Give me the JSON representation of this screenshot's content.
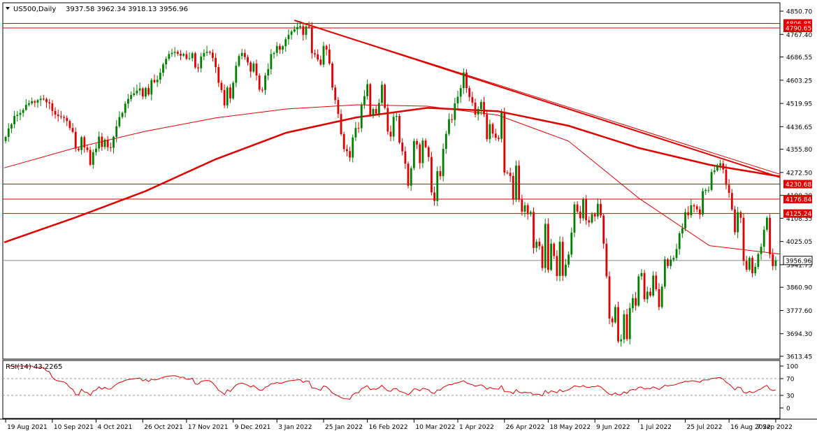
{
  "chart_data": {
    "type": "candlestick",
    "symbol": "US500,Daily",
    "ohlc_header": "3937.58 3962.34 3918.13 3956.96",
    "last_price": "3956.96",
    "price_axis": {
      "ylim": [
        3613.45,
        4850.7
      ],
      "ticks": [
        "4850.70",
        "4767.40",
        "4686.55",
        "4603.25",
        "4519.95",
        "4436.65",
        "4355.80",
        "4272.50",
        "4190.20",
        "4108.35",
        "4025.05",
        "3941.75",
        "3860.90",
        "3777.60",
        "3694.30",
        "3613.45"
      ]
    },
    "date_axis": {
      "labels": [
        "19 Aug 2021",
        "10 Sep 2021",
        "4 Oct 2021",
        "26 Oct 2021",
        "17 Nov 2021",
        "9 Dec 2021",
        "3 Jan 2022",
        "25 Jan 2022",
        "16 Feb 2022",
        "10 Mar 2022",
        "1 Apr 2022",
        "26 Apr 2022",
        "18 May 2022",
        "9 Jun 2022",
        "1 Jul 2022",
        "25 Jul 2022",
        "16 Aug 2022",
        "7 Sep 2022"
      ]
    },
    "horizontal_levels": [
      {
        "label": "4806.85",
        "value": 4806.85
      },
      {
        "label": "4790.65",
        "value": 4790.65
      },
      {
        "label": "4230.68",
        "value": 4230.68
      },
      {
        "label": "4176.84",
        "value": 4176.84
      },
      {
        "label": "4125.24",
        "value": 4125.24
      }
    ],
    "current_price_line": 3956.96,
    "rsi": {
      "label": "RSI(14) 43.2265",
      "ticks": [
        "100",
        "70",
        "30",
        "0"
      ],
      "levels": [
        70,
        30
      ],
      "ylim": [
        0,
        100
      ],
      "last": 43.2265
    },
    "closes": [
      4400,
      4430,
      4445,
      4475,
      4479,
      4486,
      4497,
      4515,
      4520,
      4528,
      4523,
      4532,
      4537,
      4536,
      4524,
      4520,
      4493,
      4480,
      4474,
      4471,
      4468,
      4457,
      4432,
      4418,
      4358,
      4353,
      4399,
      4362,
      4353,
      4300,
      4345,
      4358,
      4401,
      4364,
      4390,
      4363,
      4361,
      4400,
      4438,
      4471,
      4486,
      4519,
      4536,
      4550,
      4556,
      4566,
      4574,
      4545,
      4575,
      4552,
      4604,
      4596,
      4605,
      4630,
      4660,
      4680,
      4697,
      4701,
      4705,
      4698,
      4691,
      4697,
      4680,
      4682,
      4700,
      4649,
      4646,
      4688,
      4701,
      4705,
      4702,
      4683,
      4650,
      4594,
      4568,
      4513,
      4577,
      4538,
      4594,
      4655,
      4690,
      4701,
      4686,
      4667,
      4634,
      4663,
      4620,
      4569,
      4568,
      4620,
      4643,
      4697,
      4701,
      4726,
      4713,
      4725,
      4750,
      4766,
      4778,
      4786,
      4793,
      4797,
      4766,
      4796,
      4793,
      4700,
      4696,
      4677,
      4659,
      4726,
      4713,
      4663,
      4577,
      4532,
      4482,
      4410,
      4356,
      4349,
      4326,
      4398,
      4432,
      4431,
      4516,
      4546,
      4589,
      4477,
      4500,
      4484,
      4522,
      4587,
      4504,
      4419,
      4401,
      4472,
      4475,
      4380,
      4348,
      4304,
      4225,
      4288,
      4385,
      4373,
      4306,
      4387,
      4363,
      4328,
      4201,
      4170,
      4277,
      4259,
      4357,
      4411,
      4463,
      4461,
      4520,
      4544,
      4575,
      4631,
      4575,
      4543,
      4523,
      4480,
      4500,
      4525,
      4481,
      4392,
      4446,
      4412,
      4397,
      4393,
      4488,
      4272,
      4271,
      4260,
      4175,
      4297,
      4175,
      4132,
      4155,
      4123,
      4131,
      4002,
      4024,
      4008,
      3930,
      4088,
      3923,
      4017,
      3973,
      3901,
      4024,
      3902,
      3942,
      3978,
      4057,
      4158,
      4132,
      4108,
      4176,
      4101,
      4093,
      4123,
      4115,
      4160,
      4118,
      4017,
      3900,
      3749,
      3735,
      3790,
      3667,
      3674,
      3764,
      3675,
      3786,
      3822,
      3795,
      3900,
      3912,
      3818,
      3845,
      3831,
      3903,
      3854,
      3790,
      3863,
      3961,
      3937,
      3960,
      3966,
      3998,
      4054,
      4072,
      4130,
      4119,
      4155,
      4151,
      4140,
      4122,
      4206,
      4210,
      4210,
      4274,
      4280,
      4298,
      4305,
      4283,
      4228,
      4199,
      4140,
      4058,
      4130,
      4110,
      3955,
      3924,
      3966,
      3911,
      3934,
      3980,
      4006,
      4067,
      4110,
      3979,
      3937,
      3956.96
    ],
    "ma_thin_curve": [
      4289,
      4360,
      4420,
      4468,
      4500,
      4515,
      4510,
      4478,
      4385,
      4180,
      4010,
      3980
    ],
    "ma_thick_curve": [
      4022,
      4110,
      4205,
      4320,
      4415,
      4470,
      4504,
      4492,
      4440,
      4360,
      4300,
      4258
    ]
  }
}
